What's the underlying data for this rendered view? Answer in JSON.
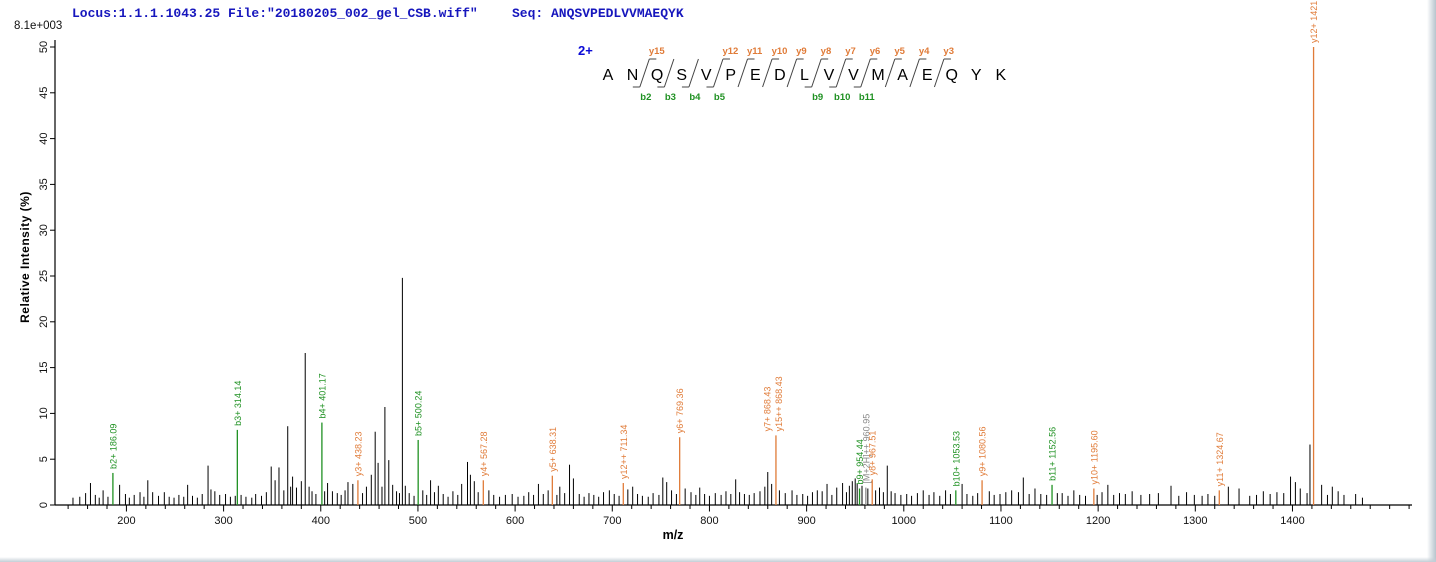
{
  "header": {
    "locus_file": "Locus:1.1.1.1043.25 File:\"20180205_002_gel_CSB.wiff\"",
    "seq": "Seq: ANQSVPEDLVVMAEQYK",
    "text_color": "#1616bd"
  },
  "scale_label": "8.1e+003",
  "sequence_annotation": {
    "charge_label": "2+",
    "residues": [
      "A",
      "N",
      "Q",
      "S",
      "V",
      "P",
      "E",
      "D",
      "L",
      "V",
      "V",
      "M",
      "A",
      "E",
      "Q",
      "Y",
      "K"
    ],
    "y_ions": [
      [
        "y15",
        2
      ],
      [
        "y12",
        5
      ],
      [
        "y11",
        6
      ],
      [
        "y10",
        7
      ],
      [
        "y9",
        8
      ],
      [
        "y8",
        9
      ],
      [
        "y7",
        10
      ],
      [
        "y6",
        11
      ],
      [
        "y5",
        12
      ],
      [
        "y4",
        13
      ],
      [
        "y3",
        14
      ]
    ],
    "b_ions": [
      [
        "b2",
        2
      ],
      [
        "b3",
        3
      ],
      [
        "b4",
        4
      ],
      [
        "b5",
        5
      ],
      [
        "b9",
        9
      ],
      [
        "b10",
        10
      ],
      [
        "b11",
        11
      ]
    ]
  },
  "colors": {
    "b_series": "#1f9122",
    "y_series": "#e07b38",
    "precursor": "#8a8a8a",
    "peak": "#000000",
    "axis": "#000000",
    "charge": "#0b0bd6"
  },
  "chart_data": {
    "type": "bar",
    "subtype": "MS/MS centroided peptide fragment spectrum",
    "title": "",
    "xlabel": "m/z",
    "ylabel": "Relative  Intensity (%)",
    "xlim": [
      126.5,
      1523
    ],
    "ylim": [
      0,
      50
    ],
    "x_major_ticks": [
      200,
      300,
      400,
      500,
      600,
      700,
      800,
      900,
      1000,
      1100,
      1200,
      1300,
      1400
    ],
    "x_minor_tick_step": 20,
    "y_ticks": [
      0,
      5,
      10,
      15,
      20,
      25,
      30,
      35,
      40,
      45,
      50
    ],
    "grid": false,
    "base_peak_intensity": "8.1e+003",
    "annotated_peaks": [
      {
        "labels": [
          "b2+ 186.09"
        ],
        "mz": 186.09,
        "intensity": 3.5,
        "series": "b"
      },
      {
        "labels": [
          "b3+ 314.14"
        ],
        "mz": 314.14,
        "intensity": 8.2,
        "series": "b"
      },
      {
        "labels": [
          "b4+ 401.17"
        ],
        "mz": 401.17,
        "intensity": 9.0,
        "series": "b"
      },
      {
        "labels": [
          "y3+ 438.23"
        ],
        "mz": 438.23,
        "intensity": 2.7,
        "series": "y"
      },
      {
        "labels": [
          "b5+ 500.24"
        ],
        "mz": 500.24,
        "intensity": 7.1,
        "series": "b"
      },
      {
        "labels": [
          "y4+ 567.28"
        ],
        "mz": 567.28,
        "intensity": 2.7,
        "series": "y"
      },
      {
        "labels": [
          "y5+ 638.31"
        ],
        "mz": 638.31,
        "intensity": 3.2,
        "series": "y"
      },
      {
        "labels": [
          "y12++ 711.34"
        ],
        "mz": 711.34,
        "intensity": 2.4,
        "series": "y"
      },
      {
        "labels": [
          "y6+ 769.36"
        ],
        "mz": 769.36,
        "intensity": 7.4,
        "series": "y"
      },
      {
        "labels": [
          "y7+ 868.43",
          "y15++ 868.43"
        ],
        "mz": 868.43,
        "intensity": 7.6,
        "series": "y"
      },
      {
        "labels": [
          "b9+ 954.44"
        ],
        "mz": 954.44,
        "intensity": 1.8,
        "series": "b"
      },
      {
        "labels": [
          "[M+2H]++ 960.95"
        ],
        "mz": 960.95,
        "intensity": 1.9,
        "series": "precursor"
      },
      {
        "labels": [
          "y8+ 967.51"
        ],
        "mz": 967.51,
        "intensity": 2.8,
        "series": "y"
      },
      {
        "labels": [
          "b10+ 1053.53"
        ],
        "mz": 1053.53,
        "intensity": 1.6,
        "series": "b"
      },
      {
        "labels": [
          "y9+ 1080.56"
        ],
        "mz": 1080.56,
        "intensity": 2.7,
        "series": "y"
      },
      {
        "labels": [
          "b11+ 1152.56"
        ],
        "mz": 1152.56,
        "intensity": 2.2,
        "series": "b"
      },
      {
        "labels": [
          "y10+ 1195.60"
        ],
        "mz": 1195.6,
        "intensity": 1.8,
        "series": "y"
      },
      {
        "labels": [
          "y11+ 1324.67"
        ],
        "mz": 1324.67,
        "intensity": 1.6,
        "series": "y"
      },
      {
        "labels": [
          "y12+ 1421.70"
        ],
        "mz": 1421.7,
        "intensity": 50.0,
        "series": "y"
      }
    ],
    "unlabeled_peaks": [
      [
        145,
        0.8
      ],
      [
        152,
        0.9
      ],
      [
        158,
        1.3
      ],
      [
        163,
        2.4
      ],
      [
        168,
        1.1
      ],
      [
        172,
        0.8
      ],
      [
        176,
        1.6
      ],
      [
        181,
        0.9
      ],
      [
        193,
        2.2
      ],
      [
        199,
        1.2
      ],
      [
        203,
        0.8
      ],
      [
        208,
        1.1
      ],
      [
        214,
        1.4
      ],
      [
        218,
        0.9
      ],
      [
        222,
        2.7
      ],
      [
        227,
        1.4
      ],
      [
        233,
        1.0
      ],
      [
        239,
        1.4
      ],
      [
        244,
        0.9
      ],
      [
        249,
        0.8
      ],
      [
        254,
        1.1
      ],
      [
        259,
        0.9
      ],
      [
        263,
        2.2
      ],
      [
        268,
        1.0
      ],
      [
        273,
        0.8
      ],
      [
        278,
        1.2
      ],
      [
        284,
        4.3
      ],
      [
        287,
        1.7
      ],
      [
        291,
        1.5
      ],
      [
        296,
        1.1
      ],
      [
        302,
        1.2
      ],
      [
        307,
        0.9
      ],
      [
        312,
        1.0
      ],
      [
        318,
        1.1
      ],
      [
        323,
        0.9
      ],
      [
        329,
        0.8
      ],
      [
        333,
        1.2
      ],
      [
        339,
        1.0
      ],
      [
        344,
        1.4
      ],
      [
        349,
        4.2
      ],
      [
        353,
        2.7
      ],
      [
        357,
        4.1
      ],
      [
        362,
        1.6
      ],
      [
        366,
        8.6
      ],
      [
        369,
        2.0
      ],
      [
        371,
        3.1
      ],
      [
        375,
        1.9
      ],
      [
        380,
        2.6
      ],
      [
        384,
        16.6
      ],
      [
        388,
        2.0
      ],
      [
        391,
        1.5
      ],
      [
        395,
        1.2
      ],
      [
        404,
        1.5
      ],
      [
        407,
        2.4
      ],
      [
        412,
        1.5
      ],
      [
        417,
        1.3
      ],
      [
        421,
        1.1
      ],
      [
        425,
        1.6
      ],
      [
        428,
        2.5
      ],
      [
        433,
        2.3
      ],
      [
        443,
        1.3
      ],
      [
        447,
        2.0
      ],
      [
        452,
        3.3
      ],
      [
        456,
        8.0
      ],
      [
        459,
        4.6
      ],
      [
        463,
        2.0
      ],
      [
        466,
        10.7
      ],
      [
        470,
        4.9
      ],
      [
        474,
        2.2
      ],
      [
        478,
        1.5
      ],
      [
        481,
        1.3
      ],
      [
        484,
        24.8
      ],
      [
        487,
        2.1
      ],
      [
        491,
        1.3
      ],
      [
        496,
        1.0
      ],
      [
        505,
        1.6
      ],
      [
        509,
        1.1
      ],
      [
        513,
        2.7
      ],
      [
        517,
        1.4
      ],
      [
        521,
        2.1
      ],
      [
        526,
        1.2
      ],
      [
        531,
        0.9
      ],
      [
        536,
        1.5
      ],
      [
        541,
        1.1
      ],
      [
        545,
        2.3
      ],
      [
        551,
        4.7
      ],
      [
        554,
        3.3
      ],
      [
        558,
        2.6
      ],
      [
        562,
        1.4
      ],
      [
        573,
        1.6
      ],
      [
        578,
        1.1
      ],
      [
        584,
        0.9
      ],
      [
        590,
        1.1
      ],
      [
        597,
        1.2
      ],
      [
        603,
        0.9
      ],
      [
        609,
        1.0
      ],
      [
        614,
        1.4
      ],
      [
        619,
        1.1
      ],
      [
        624,
        2.3
      ],
      [
        629,
        1.2
      ],
      [
        634,
        1.6
      ],
      [
        643,
        1.1
      ],
      [
        646,
        2.0
      ],
      [
        651,
        1.3
      ],
      [
        656,
        4.4
      ],
      [
        660,
        2.9
      ],
      [
        666,
        1.2
      ],
      [
        671,
        0.9
      ],
      [
        676,
        1.3
      ],
      [
        681,
        1.1
      ],
      [
        686,
        0.9
      ],
      [
        691,
        1.4
      ],
      [
        697,
        1.6
      ],
      [
        702,
        1.2
      ],
      [
        707,
        1.0
      ],
      [
        716,
        1.7
      ],
      [
        721,
        2.0
      ],
      [
        726,
        1.2
      ],
      [
        731,
        1.0
      ],
      [
        737,
        0.9
      ],
      [
        742,
        1.3
      ],
      [
        748,
        1.1
      ],
      [
        752,
        3.0
      ],
      [
        756,
        2.5
      ],
      [
        761,
        1.6
      ],
      [
        766,
        1.2
      ],
      [
        775,
        1.8
      ],
      [
        781,
        1.4
      ],
      [
        786,
        1.1
      ],
      [
        790,
        1.9
      ],
      [
        795,
        1.2
      ],
      [
        800,
        1.0
      ],
      [
        806,
        1.3
      ],
      [
        812,
        1.1
      ],
      [
        817,
        1.5
      ],
      [
        822,
        1.2
      ],
      [
        827,
        2.8
      ],
      [
        831,
        1.4
      ],
      [
        836,
        1.2
      ],
      [
        841,
        1.1
      ],
      [
        846,
        1.3
      ],
      [
        852,
        1.5
      ],
      [
        857,
        2.0
      ],
      [
        860,
        3.6
      ],
      [
        864,
        2.3
      ],
      [
        872,
        1.6
      ],
      [
        878,
        1.3
      ],
      [
        885,
        1.6
      ],
      [
        890,
        1.1
      ],
      [
        896,
        1.2
      ],
      [
        901,
        1.0
      ],
      [
        906,
        1.4
      ],
      [
        911,
        1.6
      ],
      [
        916,
        1.5
      ],
      [
        921,
        2.3
      ],
      [
        926,
        1.1
      ],
      [
        931,
        1.9
      ],
      [
        937,
        2.4
      ],
      [
        941,
        1.4
      ],
      [
        944,
        2.1
      ],
      [
        947,
        2.6
      ],
      [
        950,
        2.9
      ],
      [
        952,
        2.3
      ],
      [
        957,
        2.1
      ],
      [
        963,
        1.8
      ],
      [
        971,
        1.6
      ],
      [
        975,
        1.9
      ],
      [
        979,
        1.4
      ],
      [
        983,
        4.3
      ],
      [
        987,
        1.5
      ],
      [
        991,
        1.3
      ],
      [
        997,
        1.1
      ],
      [
        1003,
        1.2
      ],
      [
        1008,
        1.0
      ],
      [
        1014,
        1.3
      ],
      [
        1020,
        1.6
      ],
      [
        1026,
        1.1
      ],
      [
        1031,
        1.4
      ],
      [
        1037,
        1.0
      ],
      [
        1043,
        1.6
      ],
      [
        1048,
        1.2
      ],
      [
        1060,
        2.3
      ],
      [
        1065,
        1.2
      ],
      [
        1071,
        1.0
      ],
      [
        1076,
        1.3
      ],
      [
        1088,
        1.5
      ],
      [
        1093,
        1.1
      ],
      [
        1099,
        1.2
      ],
      [
        1105,
        1.4
      ],
      [
        1111,
        1.6
      ],
      [
        1118,
        1.4
      ],
      [
        1123,
        3.0
      ],
      [
        1129,
        1.2
      ],
      [
        1135,
        1.8
      ],
      [
        1141,
        1.2
      ],
      [
        1147,
        1.1
      ],
      [
        1158,
        1.3
      ],
      [
        1163,
        1.3
      ],
      [
        1169,
        1.0
      ],
      [
        1175,
        1.6
      ],
      [
        1181,
        1.1
      ],
      [
        1187,
        1.0
      ],
      [
        1199,
        1.1
      ],
      [
        1204,
        1.4
      ],
      [
        1210,
        2.2
      ],
      [
        1216,
        1.1
      ],
      [
        1222,
        1.3
      ],
      [
        1228,
        1.2
      ],
      [
        1235,
        1.5
      ],
      [
        1244,
        1.1
      ],
      [
        1253,
        1.2
      ],
      [
        1262,
        1.3
      ],
      [
        1275,
        2.1
      ],
      [
        1283,
        1.0
      ],
      [
        1291,
        1.4
      ],
      [
        1299,
        1.1
      ],
      [
        1307,
        1.0
      ],
      [
        1313,
        1.2
      ],
      [
        1320,
        1.0
      ],
      [
        1334,
        2.0
      ],
      [
        1345,
        1.8
      ],
      [
        1356,
        1.0
      ],
      [
        1363,
        1.1
      ],
      [
        1370,
        1.5
      ],
      [
        1377,
        1.2
      ],
      [
        1384,
        1.4
      ],
      [
        1391,
        1.3
      ],
      [
        1398,
        3.1
      ],
      [
        1403,
        2.5
      ],
      [
        1408,
        1.8
      ],
      [
        1415,
        1.3
      ],
      [
        1418,
        6.6
      ],
      [
        1430,
        2.2
      ],
      [
        1436,
        1.1
      ],
      [
        1441,
        2.0
      ],
      [
        1447,
        1.5
      ],
      [
        1453,
        1.1
      ],
      [
        1465,
        1.2
      ],
      [
        1472,
        0.8
      ]
    ]
  }
}
